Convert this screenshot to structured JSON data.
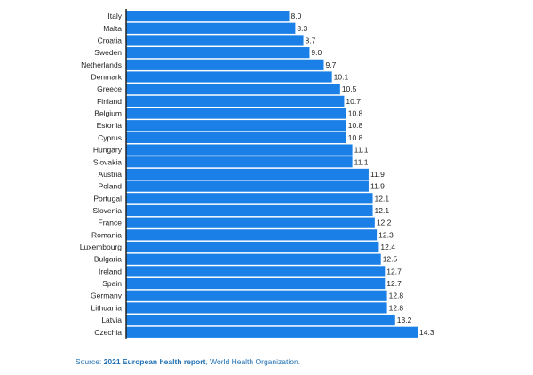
{
  "chart_data": {
    "type": "bar",
    "orientation": "horizontal",
    "categories": [
      "Italy",
      "Malta",
      "Croatia",
      "Sweden",
      "Netherlands",
      "Denmark",
      "Greece",
      "Finland",
      "Belgium",
      "Estonia",
      "Cyprus",
      "Hungary",
      "Slovakia",
      "Austria",
      "Poland",
      "Portugal",
      "Slovenia",
      "France",
      "Romania",
      "Luxembourg",
      "Bulgaria",
      "Ireland",
      "Spain",
      "Germany",
      "Lithuania",
      "Latvia",
      "Czechia"
    ],
    "values": [
      8.0,
      8.3,
      8.7,
      9.0,
      9.7,
      10.1,
      10.5,
      10.7,
      10.8,
      10.8,
      10.8,
      11.1,
      11.1,
      11.9,
      11.9,
      12.1,
      12.1,
      12.2,
      12.3,
      12.4,
      12.5,
      12.7,
      12.7,
      12.8,
      12.8,
      13.2,
      14.3
    ],
    "value_labels": [
      "8.0",
      "8.3",
      "8.7",
      "9.0",
      "9.7",
      "10.1",
      "10.5",
      "10.7",
      "10.8",
      "10.8",
      "10.8",
      "11.1",
      "11.1",
      "11.9",
      "11.9",
      "12.1",
      "12.1",
      "12.2",
      "12.3",
      "12.4",
      "12.5",
      "12.7",
      "12.7",
      "12.8",
      "12.8",
      "13.2",
      "14.3"
    ],
    "xlim": [
      0,
      14.3
    ],
    "grid": false,
    "bar_color": "#1a7fe6",
    "axis_color": "#222222"
  },
  "source": {
    "prefix": "Source: ",
    "link": "2021 European health report",
    "suffix": ", World Health Organization."
  }
}
